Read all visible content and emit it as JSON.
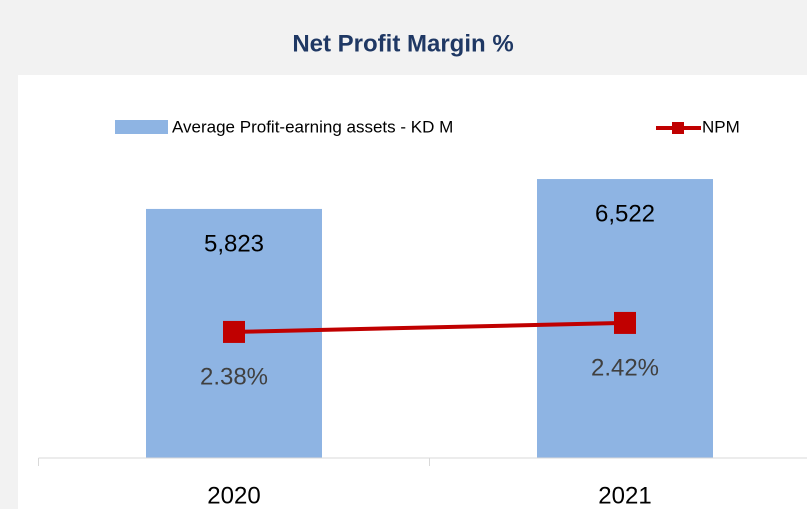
{
  "chart_data": {
    "type": "bar_line",
    "title": "Net Profit Margin %",
    "categories": [
      "2020",
      "2021"
    ],
    "series": [
      {
        "name": "Average Profit-earning assets - KD M",
        "type": "bar",
        "color": "#8eb4e3",
        "values": [
          5823,
          6522
        ],
        "value_labels": [
          "5,823",
          "6,522"
        ]
      },
      {
        "name": "NPM",
        "type": "line",
        "axis": "y2",
        "color": "#c00000",
        "values": [
          2.38,
          2.42
        ],
        "value_labels": [
          "2.38%",
          "2.42%"
        ]
      }
    ],
    "ylim": [
      0,
      7000
    ],
    "y2lim": [
      1.82,
      3.15
    ],
    "legend": "top"
  }
}
